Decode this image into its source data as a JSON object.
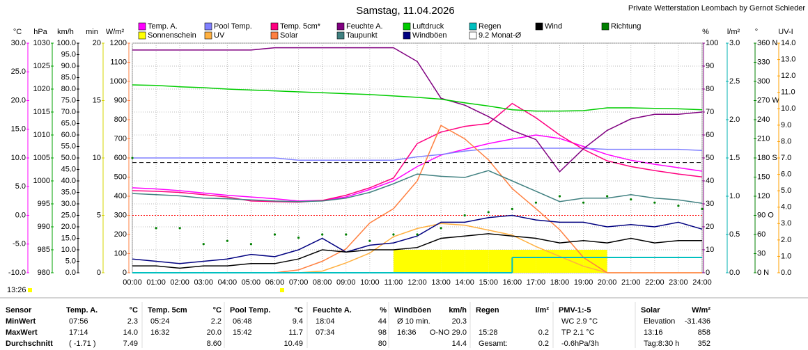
{
  "chart_data": {
    "type": "line",
    "title": "Samstag, 11.04.2026",
    "credit": "Private Wetterstation Leombach by Gernot Schieder",
    "x": [
      0,
      1,
      2,
      3,
      4,
      5,
      6,
      7,
      8,
      9,
      10,
      11,
      12,
      13,
      14,
      15,
      16,
      17,
      18,
      19,
      20,
      21,
      22,
      23,
      24
    ],
    "xlim": [
      0,
      24
    ],
    "xticks": [
      {
        "value": 0,
        "label": "00:00"
      },
      {
        "value": 1,
        "label": "01:00"
      },
      {
        "value": 2,
        "label": "02:00"
      },
      {
        "value": 3,
        "label": "03:00"
      },
      {
        "value": 4,
        "label": "04:00"
      },
      {
        "value": 5,
        "label": "05:00"
      },
      {
        "value": 6,
        "label": "06:00"
      },
      {
        "value": 7,
        "label": "07:00"
      },
      {
        "value": 8,
        "label": "08:00"
      },
      {
        "value": 9,
        "label": "09:00"
      },
      {
        "value": 10,
        "label": "10:00"
      },
      {
        "value": 11,
        "label": "11:00"
      },
      {
        "value": 12,
        "label": "12:00"
      },
      {
        "value": 13,
        "label": "13:00"
      },
      {
        "value": 14,
        "label": "14:00"
      },
      {
        "value": 15,
        "label": "15:00"
      },
      {
        "value": 16,
        "label": "16:00"
      },
      {
        "value": 17,
        "label": "17:00"
      },
      {
        "value": 18,
        "label": "18:00"
      },
      {
        "value": 19,
        "label": "19:00"
      },
      {
        "value": 20,
        "label": "20:00"
      },
      {
        "value": 21,
        "label": "21:00"
      },
      {
        "value": 22,
        "label": "22:00"
      },
      {
        "value": 23,
        "label": "23:00"
      },
      {
        "value": 24,
        "label": "24:00"
      }
    ],
    "grid": true,
    "axes": [
      {
        "label": "°C",
        "color": "#ff00ff",
        "side": "left",
        "lim": [
          -10,
          30
        ],
        "zero_line": "#ff0000",
        "ticks": [
          {
            "value": 30,
            "label": "30.0"
          },
          {
            "value": 25,
            "label": "25.0"
          },
          {
            "value": 20,
            "label": "20.0"
          },
          {
            "value": 15,
            "label": "15.0"
          },
          {
            "value": 10,
            "label": "10.0"
          },
          {
            "value": 5,
            "label": "5.0"
          },
          {
            "value": 0,
            "label": "0.0"
          },
          {
            "value": -5,
            "label": "-5.0"
          },
          {
            "value": -10,
            "label": "-10.0"
          }
        ]
      },
      {
        "label": "hPa",
        "color": "#00a000",
        "side": "left",
        "lim": [
          980,
          1030
        ],
        "ticks": [
          1030,
          1025,
          1020,
          1015,
          1010,
          1005,
          1000,
          995,
          990,
          985,
          980
        ]
      },
      {
        "label": "km/h",
        "color": "#000000",
        "side": "left",
        "lim": [
          0,
          100
        ],
        "ticks": [
          {
            "value": 100,
            "label": "100.0"
          },
          {
            "value": 95,
            "label": "95.0"
          },
          {
            "value": 90,
            "label": "90.0"
          },
          {
            "value": 85,
            "label": "85.0"
          },
          {
            "value": 80,
            "label": "80.0"
          },
          {
            "value": 75,
            "label": "75.0"
          },
          {
            "value": 70,
            "label": "70.0"
          },
          {
            "value": 65,
            "label": "65.0"
          },
          {
            "value": 60,
            "label": "60.0"
          },
          {
            "value": 55,
            "label": "55.0"
          },
          {
            "value": 50,
            "label": "50.0"
          },
          {
            "value": 45,
            "label": "45.0"
          },
          {
            "value": 40,
            "label": "40.0"
          },
          {
            "value": 35,
            "label": "35.0"
          },
          {
            "value": 30,
            "label": "30.0"
          },
          {
            "value": 25,
            "label": "25.0"
          },
          {
            "value": 20,
            "label": "20.0"
          },
          {
            "value": 15,
            "label": "15.0"
          },
          {
            "value": 10,
            "label": "10.0"
          },
          {
            "value": 5,
            "label": "5.0"
          },
          {
            "value": 0,
            "label": "0.0"
          }
        ]
      },
      {
        "label": "min",
        "color": "#d4d400",
        "side": "left",
        "lim": [
          0,
          20
        ],
        "ticks": [
          20,
          15,
          10,
          5,
          0
        ]
      },
      {
        "label": "W/m²",
        "color": "#ff8040",
        "side": "left",
        "lim": [
          0,
          1200
        ],
        "ticks": [
          1200,
          1100,
          1000,
          900,
          800,
          700,
          600,
          500,
          400,
          300,
          200,
          100,
          0
        ]
      },
      {
        "label": "%",
        "color": "#800080",
        "side": "right",
        "lim": [
          0,
          100
        ],
        "ticks": [
          100,
          90,
          80,
          70,
          60,
          50,
          40,
          30,
          20,
          10,
          0
        ]
      },
      {
        "label": "l/m²",
        "color": "#00b0b0",
        "side": "right",
        "lim": [
          0,
          3
        ],
        "ticks": [
          {
            "value": 3,
            "label": "3.0"
          },
          {
            "value": 2.5,
            "label": "2.5"
          },
          {
            "value": 2,
            "label": "2.0"
          },
          {
            "value": 1.5,
            "label": "1.5"
          },
          {
            "value": 1,
            "label": "1.0"
          },
          {
            "value": 0.5,
            "label": "0.5"
          },
          {
            "value": 0,
            "label": "0.0"
          }
        ]
      },
      {
        "label": "°",
        "color": "#008000",
        "side": "right",
        "lim": [
          0,
          360
        ],
        "ticks": [
          {
            "value": 360,
            "label": "360 N"
          },
          330,
          300,
          {
            "value": 270,
            "label": "270 W"
          },
          240,
          210,
          {
            "value": 180,
            "label": "180 S"
          },
          150,
          120,
          {
            "value": 90,
            "label": "90 O"
          },
          60,
          30,
          {
            "value": 0,
            "label": "0 N"
          }
        ]
      },
      {
        "label": "UV-I",
        "color": "#ffa000",
        "side": "right",
        "lim": [
          0,
          14
        ],
        "ticks": [
          {
            "value": 14,
            "label": "14.0"
          },
          {
            "value": 13,
            "label": "13.0"
          },
          {
            "value": 12,
            "label": "12.0"
          },
          {
            "value": 11,
            "label": "11.0"
          },
          {
            "value": 10,
            "label": "10.0"
          },
          {
            "value": 9,
            "label": "9.0"
          },
          {
            "value": 8,
            "label": "8.0"
          },
          {
            "value": 7,
            "label": "7.0"
          },
          {
            "value": 6,
            "label": "6.0"
          },
          {
            "value": 5,
            "label": "5.0"
          },
          {
            "value": 4,
            "label": "4.0"
          },
          {
            "value": 3,
            "label": "3.0"
          },
          {
            "value": 2,
            "label": "2.0"
          },
          {
            "value": 1,
            "label": "1.0"
          },
          {
            "value": 0,
            "label": "0.0"
          }
        ]
      }
    ],
    "series": [
      {
        "name": "Temp. A.",
        "color": "#ff00ff",
        "axis": 0,
        "mark": "line",
        "values": [
          4.8,
          4.6,
          4.3,
          3.9,
          3.5,
          3.2,
          2.9,
          2.5,
          2.6,
          3.2,
          4.5,
          6.0,
          8.5,
          10.5,
          11.5,
          12.5,
          13.3,
          14.0,
          13.4,
          12.0,
          10.6,
          9.6,
          8.9,
          8.3,
          7.7
        ]
      },
      {
        "name": "Sonnenschein",
        "color": "#ffff00",
        "axis": 3,
        "mark": "bars",
        "values": [
          0,
          0,
          0,
          0,
          0,
          0,
          0,
          0,
          0,
          0,
          0,
          2,
          2,
          2,
          2,
          2,
          2,
          2,
          2,
          2,
          0,
          0,
          0,
          0,
          0
        ]
      },
      {
        "name": "Pool Temp.",
        "color": "#8080ff",
        "axis": 0,
        "mark": "line",
        "values": [
          10.0,
          10.0,
          10.0,
          10.0,
          10.0,
          10.0,
          10.0,
          9.6,
          9.6,
          9.6,
          9.6,
          9.6,
          10.2,
          10.6,
          11.2,
          11.6,
          11.7,
          11.7,
          11.7,
          11.7,
          11.5,
          11.5,
          11.5,
          11.5,
          11.3
        ]
      },
      {
        "name": "UV",
        "color": "#ffb040",
        "axis": 8,
        "mark": "line",
        "values": [
          0,
          0,
          0,
          0,
          0,
          0,
          0,
          0,
          0.1,
          0.6,
          1.2,
          2.2,
          2.7,
          3.0,
          2.9,
          2.6,
          2.3,
          1.6,
          1.0,
          0.4,
          0,
          0,
          0,
          0,
          0
        ]
      },
      {
        "name": "Temp. 5cm*",
        "color": "#ff0080",
        "axis": 0,
        "mark": "line",
        "values": [
          4.3,
          4.2,
          4.0,
          3.6,
          3.2,
          2.5,
          2.4,
          2.3,
          2.6,
          3.5,
          4.8,
          6.5,
          12.5,
          14.5,
          15.5,
          16.0,
          19.5,
          17.0,
          14.0,
          11.5,
          9.5,
          8.5,
          7.8,
          7.2,
          6.7
        ]
      },
      {
        "name": "Solar",
        "color": "#ff8040",
        "axis": 4,
        "mark": "line",
        "values": [
          0,
          0,
          0,
          0,
          0,
          0,
          0,
          15,
          60,
          125,
          260,
          335,
          480,
          770,
          700,
          590,
          440,
          335,
          225,
          80,
          0,
          0,
          0,
          0,
          0
        ]
      },
      {
        "name": "Feuchte A.",
        "color": "#800080",
        "axis": 5,
        "mark": "line",
        "values": [
          97,
          97,
          97,
          97,
          97,
          97,
          98,
          98,
          98,
          98,
          98,
          98,
          92,
          76,
          73,
          68,
          62,
          58,
          44,
          54,
          62,
          67,
          69,
          69,
          70
        ]
      },
      {
        "name": "Taupunkt",
        "color": "#408080",
        "axis": 0,
        "mark": "line",
        "values": [
          3.8,
          3.6,
          3.4,
          3.0,
          2.9,
          2.7,
          2.5,
          2.4,
          2.5,
          3.0,
          4.0,
          5.5,
          7.2,
          6.8,
          6.6,
          7.8,
          6.0,
          4.2,
          2.4,
          3.0,
          3.0,
          3.6,
          3.0,
          2.7,
          2.1
        ]
      },
      {
        "name": "Luftdruck",
        "color": "#00cc00",
        "axis": 1,
        "mark": "line",
        "values": [
          1020.9,
          1020.8,
          1020.5,
          1020.3,
          1020.0,
          1019.8,
          1019.6,
          1019.4,
          1019.2,
          1019.0,
          1018.8,
          1018.5,
          1018.2,
          1017.8,
          1017.0,
          1016.3,
          1015.5,
          1015.2,
          1015.2,
          1015.3,
          1015.9,
          1015.9,
          1015.8,
          1015.7,
          1015.5
        ]
      },
      {
        "name": "Windböen",
        "color": "#000080",
        "axis": 2,
        "mark": "line",
        "values": [
          6,
          5,
          4,
          5,
          6,
          8,
          7,
          10,
          15,
          9,
          12,
          13,
          16,
          22,
          22,
          24,
          25,
          23,
          22,
          22,
          20,
          21,
          20,
          22,
          19
        ]
      },
      {
        "name": "Regen",
        "color": "#00c0c0",
        "axis": 6,
        "mark": "step",
        "values": [
          0,
          0,
          0,
          0,
          0,
          0,
          0,
          0,
          0,
          0,
          0,
          0,
          0,
          0,
          0,
          0,
          0.2,
          0.2,
          0.2,
          0.2,
          0.2,
          0.2,
          0.2,
          0.2,
          0.2
        ]
      },
      {
        "name": "Wind",
        "color": "#000000",
        "axis": 2,
        "mark": "line",
        "values": [
          3,
          3,
          2,
          3,
          3,
          4,
          4,
          6,
          10,
          9,
          10,
          10,
          11,
          15,
          16,
          17,
          16,
          15,
          13,
          14,
          13,
          15,
          13,
          14,
          14
        ]
      },
      {
        "name": "Richtung",
        "color": "#008000",
        "axis": 7,
        "mark": "dots",
        "values": [
          180,
          70,
          70,
          45,
          50,
          45,
          60,
          55,
          60,
          60,
          50,
          60,
          60,
          70,
          90,
          95,
          100,
          110,
          120,
          110,
          120,
          115,
          110,
          105,
          100
        ]
      }
    ],
    "reference": {
      "name": "9.2 Monat-Ø",
      "value": 9.2,
      "axis": 0,
      "color": "#000000"
    },
    "time": "13:26"
  },
  "table": {
    "row_labels": [
      "Sensor",
      "MinWert",
      "MaxWert",
      "Durchschnitt"
    ],
    "columns": [
      {
        "name": "Temp. A.",
        "unit": "°C",
        "cells": [
          [
            "07:56",
            "2.3"
          ],
          [
            "17:14",
            "14.0"
          ],
          [
            "( -1.71 )",
            "7.49"
          ]
        ]
      },
      {
        "name": "Temp. 5cm",
        "unit": "°C",
        "cells": [
          [
            "05:24",
            "2.2"
          ],
          [
            "16:32",
            "20.0"
          ],
          [
            null,
            "8.60"
          ]
        ]
      },
      {
        "name": "Pool Temp.",
        "unit": "°C",
        "cells": [
          [
            "06:48",
            "9.4"
          ],
          [
            "15:42",
            "11.7"
          ],
          [
            null,
            "10.49"
          ]
        ]
      },
      {
        "name": "Feuchte A.",
        "unit": "%",
        "cells": [
          [
            "18:04",
            "44"
          ],
          [
            "07:34",
            "98"
          ],
          [
            null,
            "80"
          ]
        ]
      },
      {
        "name": "Windböen",
        "unit": "km/h",
        "cells": [
          [
            "Ø 10 min.",
            "20.3"
          ],
          [
            "16:36",
            "O-NO 29.0"
          ],
          [
            null,
            "14.4"
          ]
        ]
      },
      {
        "name": "Regen",
        "unit": "l/m²",
        "cells": [
          [
            null,
            null
          ],
          [
            "15:28",
            "0.2"
          ],
          [
            "Gesamt:",
            "0.2"
          ]
        ]
      },
      {
        "name": "PMV-1:-5",
        "unit": null,
        "cells": [
          [
            "WC 2.9 °C",
            null
          ],
          [
            "TP 2.1 °C",
            null
          ],
          [
            "-0.6hPa/3h",
            null
          ]
        ]
      },
      {
        "name": "Solar",
        "unit": "W/m²",
        "cells": [
          [
            "Elevation",
            "-31.436"
          ],
          [
            "13:16",
            "858"
          ],
          [
            "Tag:8:30 h",
            "352"
          ]
        ]
      }
    ]
  }
}
